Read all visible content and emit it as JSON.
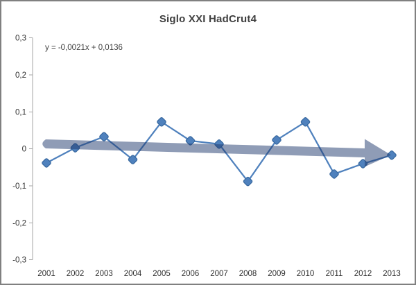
{
  "window": {
    "background": "#ffffff",
    "border_color": "#808080"
  },
  "chart_data": {
    "type": "line",
    "title": "Siglo XXI HadCrut4",
    "annotation": "y = -0,0021x + 0,0136",
    "categories": [
      "2001",
      "2002",
      "2003",
      "2004",
      "2005",
      "2006",
      "2007",
      "2008",
      "2009",
      "2010",
      "2011",
      "2012",
      "2013"
    ],
    "series": [
      {
        "name": "HadCrut4",
        "values": [
          -0.038,
          0.003,
          0.033,
          -0.029,
          0.073,
          0.022,
          0.013,
          -0.088,
          0.024,
          0.073,
          -0.068,
          -0.04,
          -0.017
        ]
      }
    ],
    "xlabel": "",
    "ylabel": "",
    "ylim": [
      -0.3,
      0.3
    ],
    "y_ticks": {
      "values": [
        0.3,
        0.2,
        0.1,
        0,
        -0.1,
        -0.2,
        -0.3
      ],
      "labels": [
        "0,3",
        "0,2",
        "0,1",
        "0",
        "-0,1",
        "-0,2",
        "-0,3"
      ]
    },
    "grid": false,
    "legend_position": "none",
    "decimal_separator": ",",
    "trend": {
      "equation": "y = -0,0021x + 0,0136",
      "slope": -0.0021,
      "intercept": 0.0136,
      "rendered_as": "semi-transparent block arrow pointing right, sloping slightly down"
    },
    "colors": {
      "line": "#4f81bd",
      "marker_fill": "#4f81bd",
      "marker_border": "#38689e",
      "arrow_fill": "#1f3a6e",
      "arrow_opacity": 0.5,
      "axis": "#a6a6a6",
      "tick_text": "#303030",
      "title_text": "#3f3f3f"
    }
  }
}
